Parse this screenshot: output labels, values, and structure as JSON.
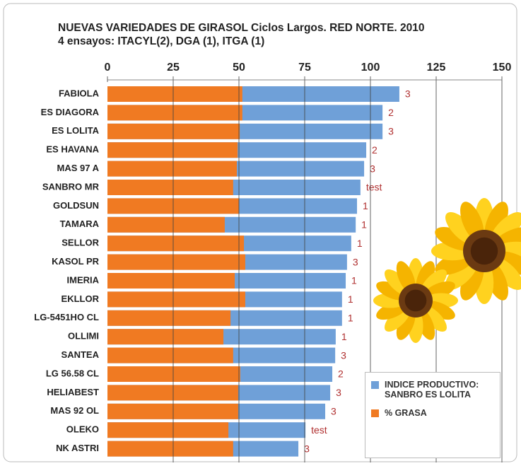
{
  "chart_data": {
    "type": "bar",
    "orientation": "horizontal",
    "overlap": true,
    "title": "NUEVAS VARIEDADES DE GIRASOL Ciclos Largos. RED NORTE. 2010",
    "subtitle": "4 ensayos: ITACYL(2), DGA (1), ITGA (1)",
    "categories": [
      "FABIOLA",
      "ES DIAGORA",
      "ES LOLITA",
      "ES HAVANA",
      "MAS 97 A",
      "SANBRO MR",
      "GOLDSUN",
      "TAMARA",
      "SELLOR",
      "KASOL PR",
      "IMERIA",
      "EKLLOR",
      "LG-5451HO CL",
      "OLLIMI",
      "SANTEA",
      "LG 56.58 CL",
      "HELIABEST",
      "MAS 92 OL",
      "OLEKO",
      "NK ASTRI"
    ],
    "series": [
      {
        "name": "INDICE PRODUCTIVO: SANBRO ES LOLITA",
        "color": "#6fa0d8",
        "values": [
          111,
          104.6,
          104.6,
          98.4,
          97.6,
          96.2,
          94.9,
          94.4,
          92.7,
          91.1,
          90.6,
          89.2,
          89.2,
          86.8,
          86.6,
          85.5,
          84.7,
          82.8,
          75.3,
          72.6
        ]
      },
      {
        "name": "% GRASA",
        "color": "#f07a22",
        "values": [
          51.3,
          51.3,
          50.3,
          49.5,
          49.2,
          47.8,
          50,
          44.6,
          51.9,
          52.4,
          48.4,
          52.4,
          46.8,
          44.1,
          47.8,
          50.5,
          49.7,
          49.7,
          46,
          47.8
        ]
      }
    ],
    "annotations": [
      "3",
      "2",
      "3",
      "2",
      "3",
      "test",
      "1",
      "1",
      "1",
      "3",
      "1",
      "1",
      "1",
      "1",
      "3",
      "2",
      "3",
      "3",
      "test",
      "3"
    ],
    "xlim": [
      0,
      150
    ],
    "xticks": [
      0,
      25,
      50,
      75,
      100,
      125,
      150
    ],
    "grid": true,
    "legend_position": "lower right"
  }
}
